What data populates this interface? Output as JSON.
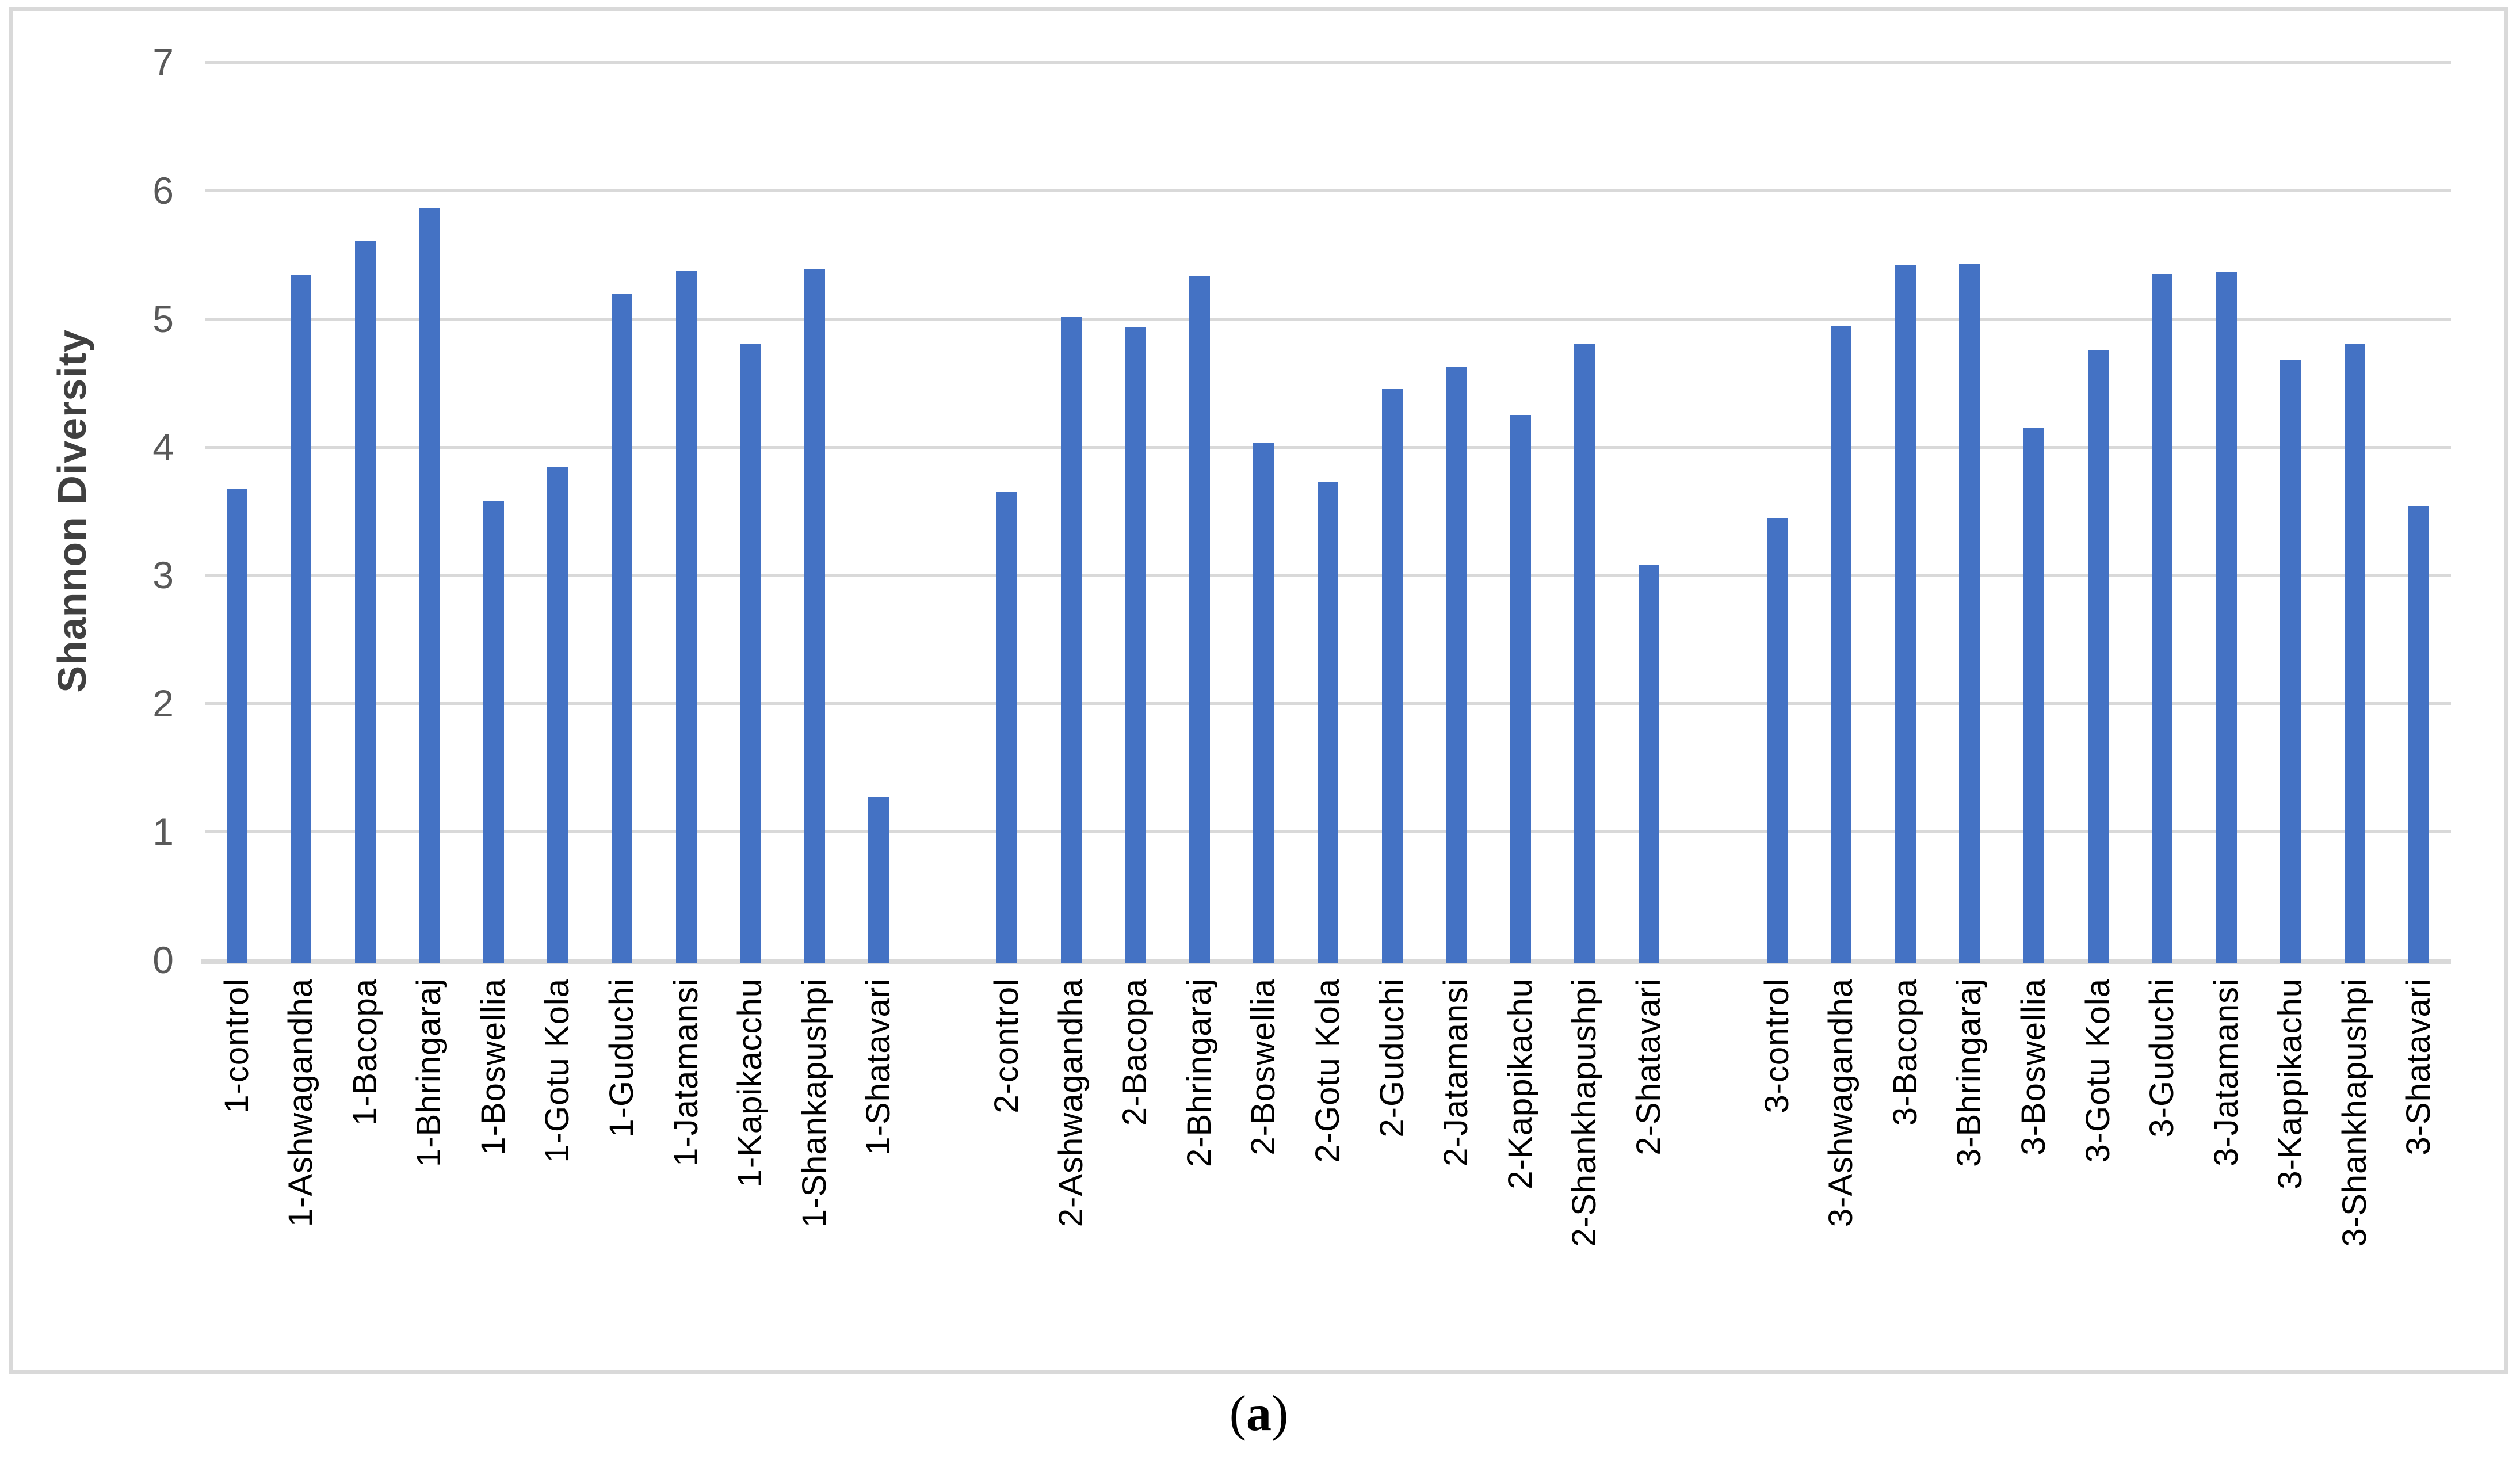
{
  "figure": {
    "caption": {
      "open": "(",
      "letter": "a",
      "close": ")"
    }
  },
  "chart_data": {
    "type": "bar",
    "title": "",
    "xlabel": "",
    "ylabel": "Shannon Diversity",
    "ylim": [
      0,
      7
    ],
    "yticks": [
      0,
      1,
      2,
      3,
      4,
      5,
      6,
      7
    ],
    "grid": true,
    "legend": false,
    "bar_color": "#4472C4",
    "gridline_color": "#D9D9D9",
    "axis_line_color": "#D9D9D9",
    "ytick_label_color": "#595959",
    "xtick_label_color": "#000000",
    "axis_title_color": "#404040",
    "group_gap_slots": 1,
    "groups": [
      {
        "name": "1",
        "items": [
          {
            "label": "1-control",
            "value": 3.67
          },
          {
            "label": "1-Ashwagandha",
            "value": 5.34
          },
          {
            "label": "1-Bacopa",
            "value": 5.61
          },
          {
            "label": "1-Bhringaraj",
            "value": 5.86
          },
          {
            "label": "1-Boswellia",
            "value": 3.58
          },
          {
            "label": "1-Gotu Kola",
            "value": 3.84
          },
          {
            "label": "1-Guduchi",
            "value": 5.19
          },
          {
            "label": "1-Jatamansi",
            "value": 5.37
          },
          {
            "label": "1-Kapikacchu",
            "value": 4.8
          },
          {
            "label": "1-Shankapushpi",
            "value": 5.39
          },
          {
            "label": "1-Shatavari",
            "value": 1.27
          }
        ]
      },
      {
        "name": "2",
        "items": [
          {
            "label": "2-control",
            "value": 3.65
          },
          {
            "label": "2-Ashwagandha",
            "value": 5.01
          },
          {
            "label": "2-Bacopa",
            "value": 4.93
          },
          {
            "label": "2-Bhringaraj",
            "value": 5.33
          },
          {
            "label": "2-Boswellia",
            "value": 4.03
          },
          {
            "label": "2-Gotu Kola",
            "value": 3.73
          },
          {
            "label": "2-Guduchi",
            "value": 4.45
          },
          {
            "label": "2-Jatamansi",
            "value": 4.62
          },
          {
            "label": "2-Kappikachu",
            "value": 4.25
          },
          {
            "label": "2-Shankhapushpi",
            "value": 4.8
          },
          {
            "label": "2-Shatavari",
            "value": 3.08
          }
        ]
      },
      {
        "name": "3",
        "items": [
          {
            "label": "3-control",
            "value": 3.44
          },
          {
            "label": "3-Ashwagandha",
            "value": 4.94
          },
          {
            "label": "3-Bacopa",
            "value": 5.42
          },
          {
            "label": "3-Bhringaraj",
            "value": 5.43
          },
          {
            "label": "3-Boswellia",
            "value": 4.15
          },
          {
            "label": "3-Gotu Kola",
            "value": 4.75
          },
          {
            "label": "3-Guduchi",
            "value": 5.35
          },
          {
            "label": "3-Jatamansi",
            "value": 5.36
          },
          {
            "label": "3-Kappikachu",
            "value": 4.68
          },
          {
            "label": "3-Shankhapushpi",
            "value": 4.8
          },
          {
            "label": "3-Shatavari",
            "value": 3.54
          }
        ]
      }
    ]
  }
}
